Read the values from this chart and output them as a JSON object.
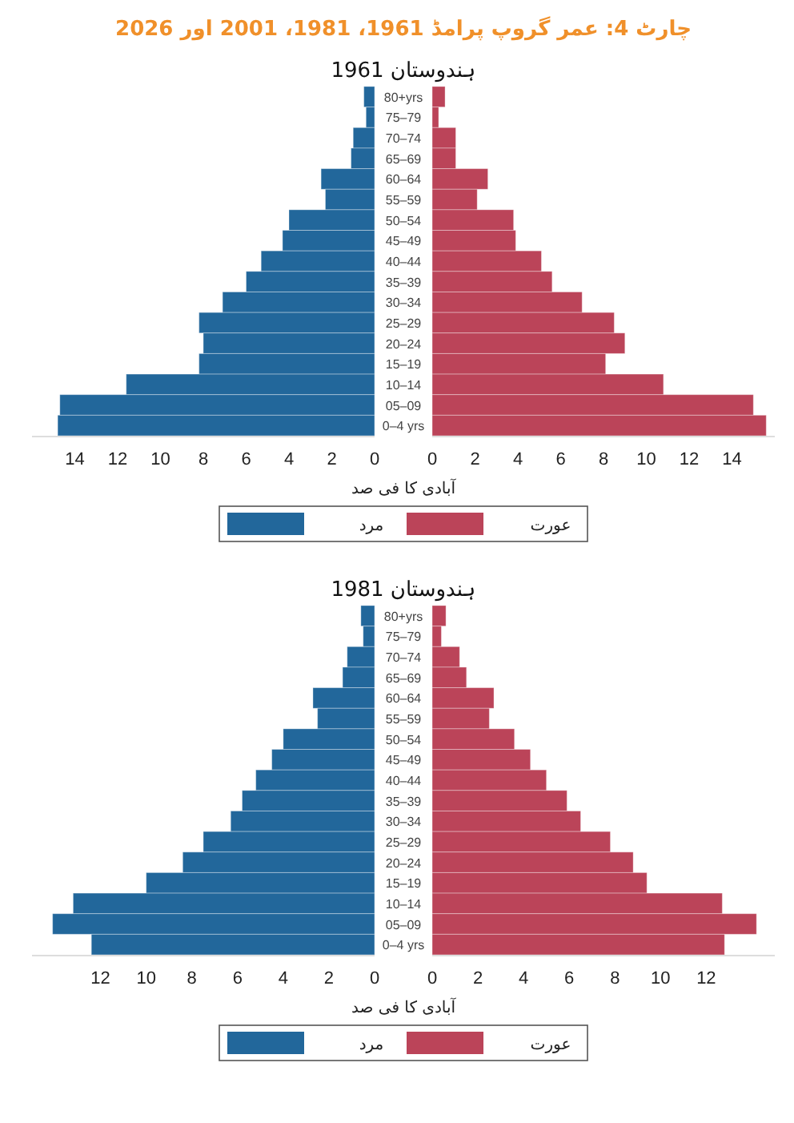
{
  "chart_data": [
    {
      "type": "bar",
      "orientation": "horizontal",
      "title": "چارٹ 4: عمر گروپ پرامڈ 1961، 1981، 2001 اور 2026",
      "subtitle": "ہندوستان 1961",
      "xlabel": "آبادی کا فی صد",
      "categories": [
        "80+yrs",
        "75–79",
        "70–74",
        "65–69",
        "60–64",
        "55–59",
        "50–54",
        "45–49",
        "40–44",
        "35–39",
        "30–34",
        "25–29",
        "20–24",
        "15–19",
        "10–14",
        "05–09",
        "0–4 yrs"
      ],
      "series": [
        {
          "name": "مرد",
          "color": "#22679b",
          "values": [
            0.5,
            0.4,
            1.0,
            1.1,
            2.5,
            2.3,
            4.0,
            4.3,
            5.3,
            6.0,
            7.1,
            8.2,
            8.0,
            8.2,
            11.6,
            14.7,
            14.8
          ]
        }
      ],
      "xlim": [
        16,
        0
      ],
      "xticks": [
        14,
        12,
        10,
        8,
        6,
        4,
        2,
        0
      ],
      "legend": "bottom"
    },
    {
      "type": "bar",
      "orientation": "horizontal",
      "categories": [
        "80+yrs",
        "75–79",
        "70–74",
        "65–69",
        "60–64",
        "55–59",
        "50–54",
        "45–49",
        "40–44",
        "35–39",
        "30–34",
        "25–29",
        "20–24",
        "15–19",
        "10–14",
        "05–09",
        "0–4 yrs"
      ],
      "series": [
        {
          "name": "عورت",
          "color": "#bb4459",
          "values": [
            0.6,
            0.3,
            1.1,
            1.1,
            2.6,
            2.1,
            3.8,
            3.9,
            5.1,
            5.6,
            7.0,
            8.5,
            9.0,
            8.1,
            10.8,
            15.0,
            15.6
          ]
        }
      ],
      "xlim": [
        0,
        16
      ],
      "xticks": [
        0,
        2,
        4,
        6,
        8,
        10,
        12,
        14
      ],
      "tick_labels": "x",
      "legend": "bottom"
    },
    {
      "type": "bar",
      "orientation": "horizontal",
      "title": "ہندوستان 1981",
      "xlabel": "آبادی کا فی صد",
      "categories": [
        "80+yrs",
        "75–79",
        "70–74",
        "65–69",
        "60–64",
        "55–59",
        "50–54",
        "45–49",
        "40–44",
        "35–39",
        "30–34",
        "25–29",
        "20–24",
        "15–19",
        "10–14",
        "05–09",
        "0–4 yrs"
      ],
      "series": [
        {
          "name": "مرد",
          "color": "#22679b",
          "values": [
            0.6,
            0.5,
            1.2,
            1.4,
            2.7,
            2.5,
            4.0,
            4.5,
            5.2,
            5.8,
            6.3,
            7.5,
            8.4,
            10.0,
            13.2,
            14.1,
            12.4
          ]
        }
      ],
      "xlim": [
        15,
        0
      ],
      "xticks": [
        12,
        10,
        8,
        6,
        4,
        2,
        0
      ],
      "legend": "bottom"
    },
    {
      "type": "bar",
      "orientation": "horizontal",
      "categories": [
        "80+yrs",
        "75–79",
        "70–74",
        "65–69",
        "60–64",
        "55–59",
        "50–54",
        "45–49",
        "40–44",
        "35–39",
        "30–34",
        "25–29",
        "20–24",
        "15–19",
        "10–14",
        "05–09",
        "0–4 yrs"
      ],
      "series": [
        {
          "name": "عورت",
          "color": "#bb4459",
          "values": [
            0.6,
            0.4,
            1.2,
            1.5,
            2.7,
            2.5,
            3.6,
            4.3,
            5.0,
            5.9,
            6.5,
            7.8,
            8.8,
            9.4,
            12.7,
            14.2,
            12.8
          ]
        }
      ],
      "xlim": [
        0,
        15
      ],
      "xticks": [
        0,
        2,
        4,
        6,
        8,
        10,
        12
      ],
      "tick_labels": "x",
      "legend": "bottom"
    }
  ]
}
